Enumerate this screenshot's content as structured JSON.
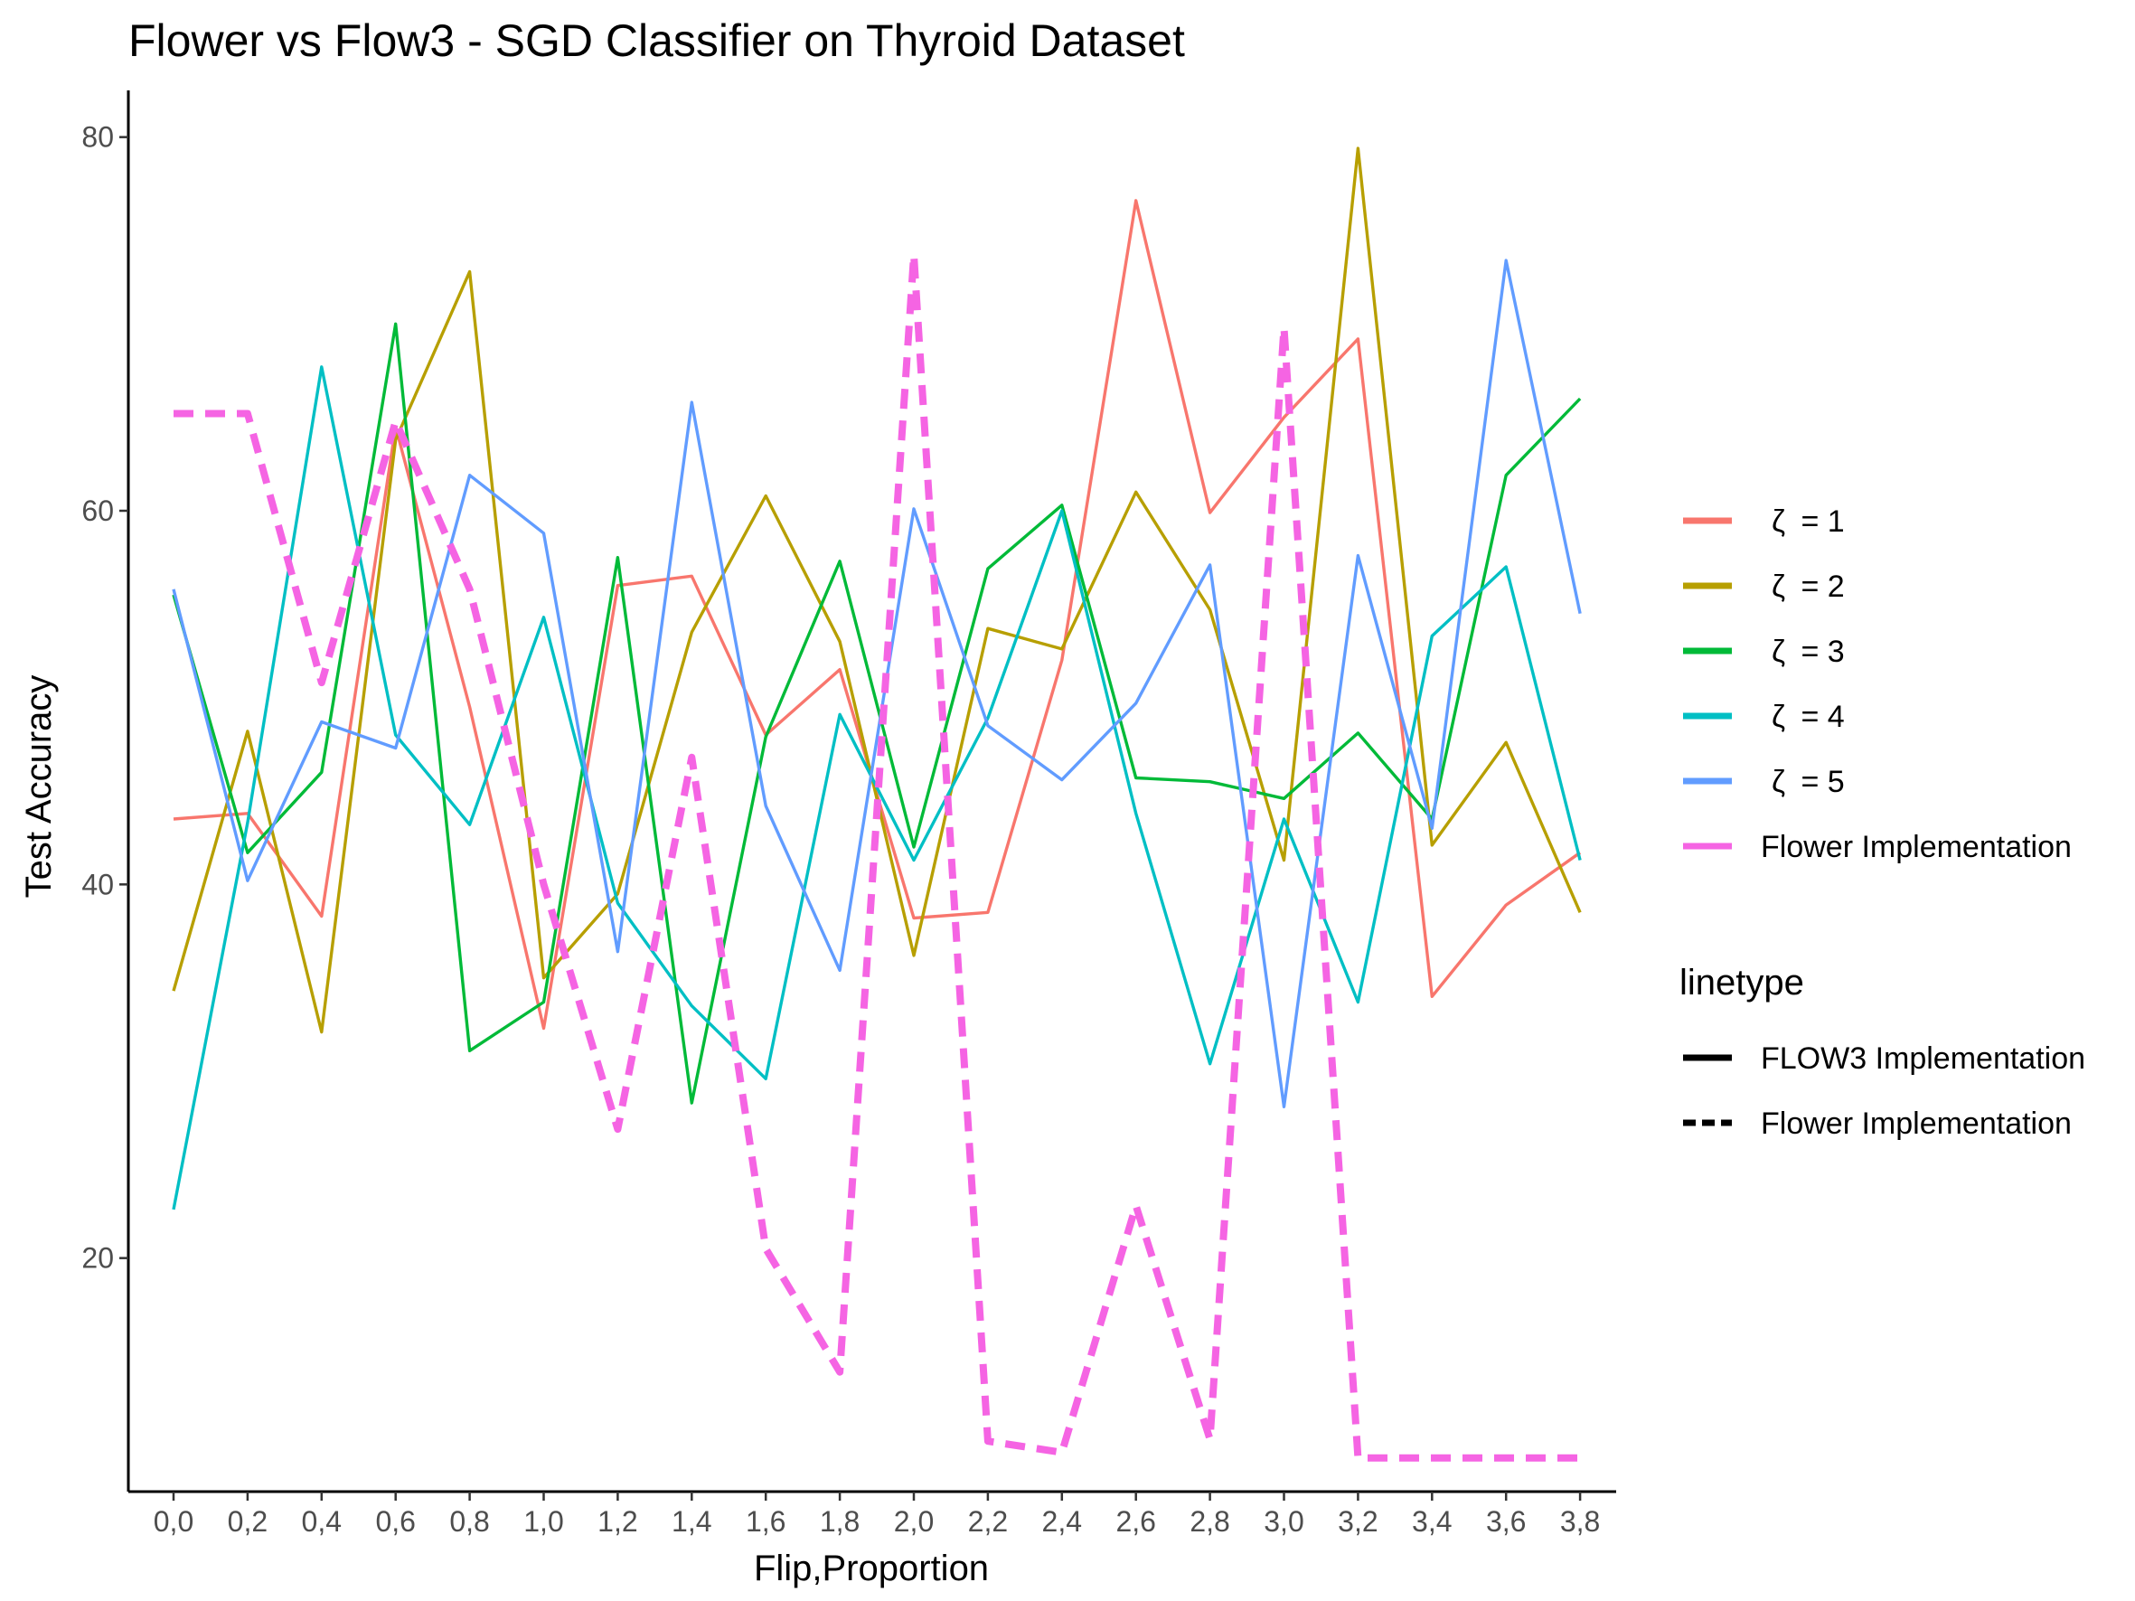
{
  "chart_data": {
    "type": "line",
    "title": "Flower vs Flow3 - SGD Classifier on Thyroid Dataset",
    "xlabel": "Flip,Proportion",
    "ylabel": "Test Accuracy",
    "categories": [
      "0,0",
      "0,2",
      "0,4",
      "0,6",
      "0,8",
      "1,0",
      "1,2",
      "1,4",
      "1,6",
      "1,8",
      "2,0",
      "2,2",
      "2,4",
      "2,6",
      "2,8",
      "3,0",
      "3,2",
      "3,4",
      "3,6",
      "3,8"
    ],
    "ylim": [
      7.5,
      82.5
    ],
    "yticks": [
      20,
      40,
      60,
      80
    ],
    "series": [
      {
        "name": "ζ = 1",
        "label_symbol": "ζ",
        "label_value": " = 1",
        "color": "#F8766D",
        "linetype": "solid",
        "values": [
          43.5,
          43.8,
          38.3,
          64.5,
          49.5,
          32.3,
          56.0,
          56.5,
          48.0,
          51.5,
          38.2,
          38.5,
          52.0,
          76.6,
          59.9,
          65.0,
          69.2,
          34.0,
          38.9,
          41.7
        ]
      },
      {
        "name": "ζ = 2",
        "label_symbol": "ζ",
        "label_value": " = 2",
        "color": "#B79F00",
        "linetype": "solid",
        "values": [
          34.3,
          48.2,
          32.1,
          63.8,
          72.8,
          35.0,
          39.5,
          53.5,
          60.8,
          53.0,
          36.2,
          53.7,
          52.6,
          61.0,
          54.7,
          41.3,
          79.4,
          42.1,
          47.6,
          38.5
        ]
      },
      {
        "name": "ζ = 3",
        "label_symbol": "ζ",
        "label_value": " = 3",
        "color": "#00BA38",
        "linetype": "solid",
        "values": [
          55.5,
          41.7,
          46.0,
          70.0,
          31.1,
          33.7,
          57.5,
          28.3,
          47.9,
          57.3,
          42.0,
          56.9,
          60.3,
          45.7,
          45.5,
          44.6,
          48.1,
          43.5,
          61.9,
          66.0
        ]
      },
      {
        "name": "ζ = 4",
        "label_symbol": "ζ",
        "label_value": " = 4",
        "color": "#00BFC4",
        "linetype": "solid",
        "values": [
          22.6,
          43.3,
          67.7,
          48.0,
          43.2,
          54.3,
          39.0,
          33.5,
          29.6,
          49.1,
          41.3,
          48.9,
          60.0,
          43.8,
          30.4,
          43.5,
          33.7,
          53.3,
          57.0,
          41.3
        ]
      },
      {
        "name": "ζ = 5",
        "label_symbol": "ζ",
        "label_value": " = 5",
        "color": "#619CFF",
        "linetype": "solid",
        "values": [
          55.8,
          40.2,
          48.7,
          47.3,
          61.9,
          58.8,
          36.4,
          65.8,
          44.2,
          35.4,
          60.1,
          48.5,
          45.6,
          49.7,
          57.1,
          28.1,
          57.6,
          43.0,
          73.4,
          54.5
        ]
      },
      {
        "name": "Flower Implementation",
        "color": "#F564E3",
        "linetype": "dashed",
        "values": [
          65.2,
          65.2,
          50.8,
          64.8,
          55.8,
          40.0,
          26.9,
          46.8,
          20.5,
          13.9,
          73.7,
          10.2,
          9.6,
          22.8,
          10.3,
          69.8,
          9.3,
          9.3,
          9.3,
          9.3
        ]
      }
    ],
    "legend": {
      "position": "right",
      "linetype_title": "linetype",
      "linetype_items": [
        {
          "label": "FLOW3 Implementation",
          "linetype": "solid"
        },
        {
          "label": "Flower Implementation",
          "linetype": "dashed"
        }
      ]
    }
  }
}
